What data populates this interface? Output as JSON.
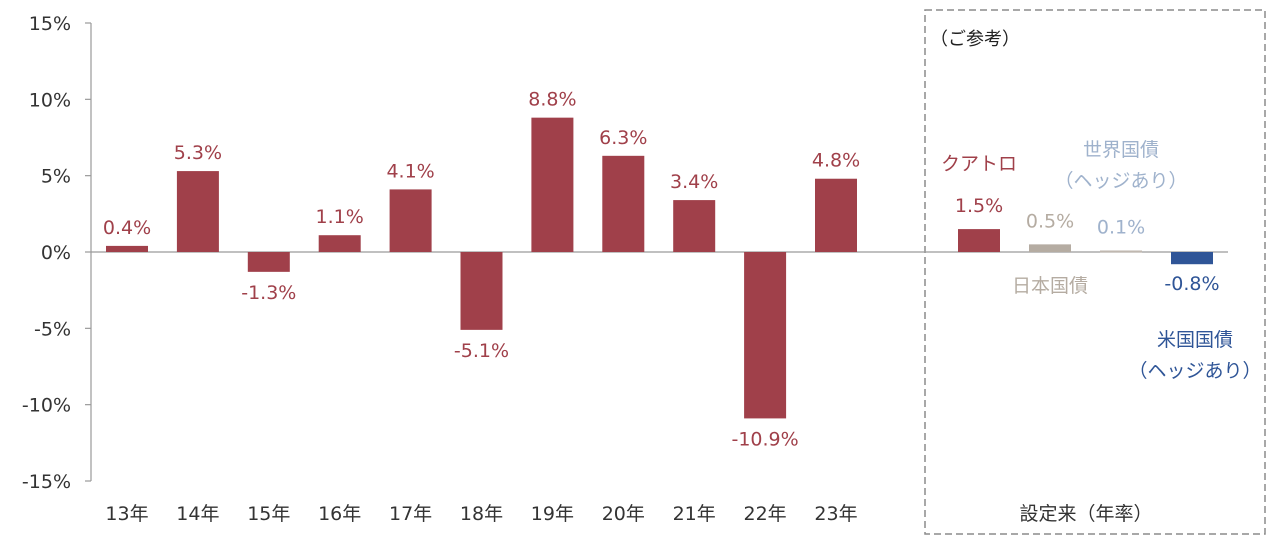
{
  "chart_data": {
    "type": "bar",
    "ylim": [
      -15,
      15
    ],
    "y_ticks": [
      "15%",
      "10%",
      "5%",
      "0%",
      "-5%",
      "-10%",
      "-15%"
    ],
    "y_tick_values": [
      15,
      10,
      5,
      0,
      -5,
      -10,
      -15
    ],
    "grid": false,
    "categories": [
      "13年",
      "14年",
      "15年",
      "16年",
      "17年",
      "18年",
      "19年",
      "20年",
      "21年",
      "22年",
      "23年"
    ],
    "values": [
      0.4,
      5.3,
      -1.3,
      1.1,
      4.1,
      -5.1,
      8.8,
      6.3,
      3.4,
      -10.9,
      4.8
    ],
    "value_labels": [
      "0.4%",
      "5.3%",
      "-1.3%",
      "1.1%",
      "4.1%",
      "-5.1%",
      "8.8%",
      "6.3%",
      "3.4%",
      "-10.9%",
      "4.8%"
    ],
    "bar_color": "#a0404a",
    "reference": {
      "title": "（ご参考）",
      "xlabel": "設定来（年率）",
      "items": [
        {
          "name": "クアトロ",
          "value": 1.5,
          "value_label": "1.5%",
          "color": "#a0404a",
          "name_color": "#a0404a"
        },
        {
          "name": "日本国債",
          "value": 0.5,
          "value_label": "0.5%",
          "color": "#b5aca2",
          "name_color": "#b5aca2"
        },
        {
          "name": "世界国債（ヘッジあり）",
          "name_lines": [
            "世界国債",
            "（ヘッジあり）"
          ],
          "value": 0.1,
          "value_label": "0.1%",
          "color": "#c0b8b0",
          "name_color": "#9fb2cc"
        },
        {
          "name": "米国国債（ヘッジあり）",
          "name_lines": [
            "米国国債",
            "（ヘッジあり）"
          ],
          "value": -0.8,
          "value_label": "-0.8%",
          "color": "#2f5597",
          "name_color": "#2f5597"
        }
      ]
    }
  }
}
